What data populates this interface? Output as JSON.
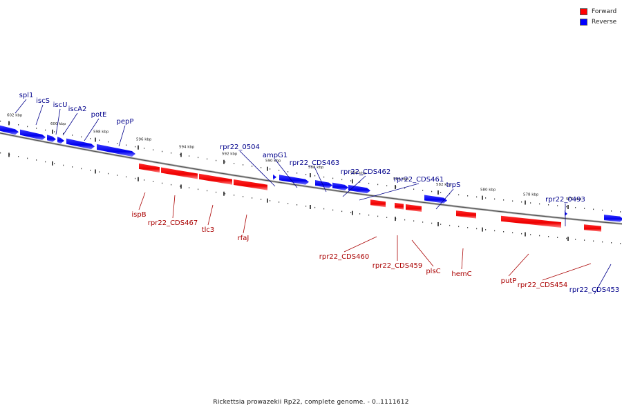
{
  "legend": [
    {
      "label": "Forward",
      "color": "#ff0000"
    },
    {
      "label": "Reverse",
      "color": "#0000ff"
    }
  ],
  "caption": "Rickettsia prowazekii Rp22, complete genome. - 0..1111612",
  "colors": {
    "forward": "#ff0000",
    "reverse": "#0000ff",
    "forward_text": "#aa0000",
    "reverse_text": "#00008b"
  },
  "ticks": [
    "602 kbp",
    "600 kbp",
    "598 kbp",
    "596 kbp",
    "594 kbp",
    "592 kbp",
    "590 kbp",
    "588 kbp",
    "586 kbp",
    "584 kbp",
    "582 kbp",
    "580 kbp",
    "578 kbp",
    "576 kbp"
  ],
  "reverse_genes": [
    "spl1",
    "iscS",
    "iscU",
    "iscA2",
    "potE",
    "pepP",
    "rpr22_0504",
    "ampG1",
    "rpr22_CDS463",
    "rpr22_CDS462",
    "rpr22_CDS461",
    "trpS",
    "rpr22_0493",
    "rpr22_CDS453"
  ],
  "forward_genes": [
    "ispB",
    "rpr22_CDS467",
    "tlc3",
    "rfaJ",
    "rpr22_CDS460",
    "rpr22_CDS459",
    "plsC",
    "hemC",
    "putP",
    "rpr22_CDS454"
  ]
}
